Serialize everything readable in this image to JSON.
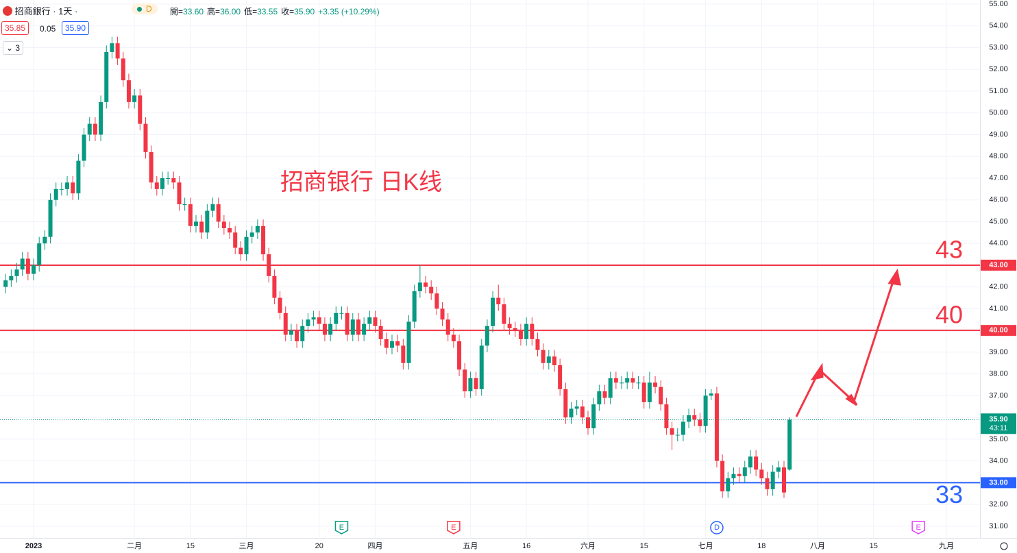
{
  "header": {
    "symbol": "招商銀行 · 1天 ·",
    "interval_badge": "D",
    "ohlc": [
      {
        "label": "開=",
        "value": "33.60"
      },
      {
        "label": "高=",
        "value": "36.00"
      },
      {
        "label": "低=",
        "value": "33.55"
      },
      {
        "label": "收=",
        "value": "35.90"
      }
    ],
    "change": "+3.35 (+10.29%)",
    "bid": "35.85",
    "spread": "0.05",
    "ask": "35.90",
    "indicators": "3"
  },
  "chart_data": {
    "type": "candlestick",
    "title": "招商银行 日K线",
    "up_color": "#089981",
    "down_color": "#f23645",
    "grid": true,
    "xlim": [
      -1,
      174
    ],
    "ylim": [
      30.46,
      55.19
    ],
    "xticks": [
      {
        "value": 5,
        "label": "2023"
      },
      {
        "value": 23,
        "label": "二月"
      },
      {
        "value": 33,
        "label": "15"
      },
      {
        "value": 43,
        "label": "三月"
      },
      {
        "value": 56,
        "label": "20"
      },
      {
        "value": 66,
        "label": "四月"
      },
      {
        "value": 83,
        "label": "五月"
      },
      {
        "value": 93,
        "label": "16"
      },
      {
        "value": 104,
        "label": "六月"
      },
      {
        "value": 114,
        "label": "15"
      },
      {
        "value": 125,
        "label": "七月"
      },
      {
        "value": 135,
        "label": "18"
      },
      {
        "value": 145,
        "label": "八月"
      },
      {
        "value": 155,
        "label": "15"
      },
      {
        "value": 168,
        "label": "九月"
      }
    ],
    "yticks": [
      {
        "value": 31,
        "label": "31.00"
      },
      {
        "value": 32,
        "label": "32.00"
      },
      {
        "value": 33,
        "label": "33.00"
      },
      {
        "value": 34,
        "label": "34.00"
      },
      {
        "value": 35,
        "label": "35.00"
      },
      {
        "value": 36,
        "label": "36.00"
      },
      {
        "value": 37,
        "label": "37.00"
      },
      {
        "value": 38,
        "label": "38.00"
      },
      {
        "value": 39,
        "label": "39.00"
      },
      {
        "value": 40,
        "label": "40.00"
      },
      {
        "value": 41,
        "label": "41.00"
      },
      {
        "value": 42,
        "label": "42.00"
      },
      {
        "value": 43,
        "label": "43.00"
      },
      {
        "value": 44,
        "label": "44.00"
      },
      {
        "value": 45,
        "label": "45.00"
      },
      {
        "value": 46,
        "label": "46.00"
      },
      {
        "value": 47,
        "label": "47.00"
      },
      {
        "value": 48,
        "label": "48.00"
      },
      {
        "value": 49,
        "label": "49.00"
      },
      {
        "value": 50,
        "label": "50.00"
      },
      {
        "value": 51,
        "label": "51.00"
      },
      {
        "value": 52,
        "label": "52.00"
      },
      {
        "value": 53,
        "label": "53.00"
      },
      {
        "value": 54,
        "label": "54.00"
      },
      {
        "value": 55,
        "label": "55.00"
      }
    ],
    "open": [
      42.0,
      42.3,
      42.5,
      42.8,
      43.3,
      42.6,
      43.0,
      44.0,
      44.3,
      46.0,
      46.5,
      46.5,
      46.8,
      46.3,
      47.8,
      49.0,
      49.5,
      49.0,
      50.5,
      52.8,
      53.2,
      52.5,
      51.5,
      50.5,
      50.8,
      49.5,
      48.2,
      46.8,
      46.5,
      47.0,
      47.0,
      46.8,
      45.8,
      45.8,
      44.8,
      45.0,
      44.5,
      45.5,
      45.8,
      45.0,
      44.7,
      44.5,
      43.8,
      43.5,
      44.3,
      44.5,
      44.8,
      43.5,
      42.5,
      41.5,
      40.8,
      39.8,
      40.0,
      39.5,
      40.2,
      40.5,
      40.6,
      40.3,
      39.8,
      40.3,
      40.8,
      40.8,
      39.8,
      40.5,
      39.8,
      40.3,
      40.6,
      40.2,
      39.6,
      39.2,
      39.5,
      39.3,
      38.5,
      40.4,
      41.8,
      42.2,
      42.0,
      41.7,
      41.0,
      40.5,
      39.8,
      39.5,
      38.2,
      37.2,
      37.8,
      37.3,
      39.3,
      40.2,
      41.5,
      41.2,
      40.3,
      40.1,
      40.0,
      39.6,
      40.3,
      39.6,
      39.1,
      38.5,
      38.8,
      38.4,
      37.3,
      36.0,
      36.4,
      36.5,
      36.0,
      35.5,
      36.6,
      37.2,
      36.9,
      37.8,
      37.6,
      37.6,
      37.8,
      37.6,
      37.6,
      36.7,
      37.6,
      37.4,
      36.6,
      35.5,
      35.2,
      35.2,
      35.8,
      36.1,
      35.9,
      35.6,
      37.0,
      37.1,
      34.0,
      32.6,
      33.2,
      33.4,
      33.3,
      33.7,
      34.2,
      33.6,
      33.2,
      32.7,
      33.5,
      33.7,
      33.6
    ],
    "high": [
      42.6,
      42.8,
      43.1,
      43.6,
      43.6,
      43.3,
      44.3,
      44.6,
      46.3,
      46.8,
      46.8,
      47.1,
      47.1,
      48.1,
      49.3,
      49.8,
      49.8,
      50.8,
      53.1,
      53.5,
      53.5,
      52.8,
      51.8,
      51.1,
      51.1,
      49.8,
      48.5,
      47.1,
      47.3,
      47.3,
      47.3,
      47.1,
      46.1,
      46.1,
      45.3,
      45.3,
      45.8,
      46.1,
      46.1,
      45.3,
      45.0,
      44.8,
      44.1,
      44.6,
      44.8,
      45.1,
      45.1,
      43.8,
      42.8,
      41.8,
      41.1,
      40.3,
      40.3,
      40.5,
      40.8,
      40.9,
      40.9,
      40.6,
      40.6,
      41.1,
      41.1,
      41.1,
      40.8,
      40.8,
      40.6,
      40.9,
      40.9,
      40.5,
      39.9,
      39.8,
      39.8,
      39.6,
      40.7,
      42.1,
      43.0,
      42.5,
      42.3,
      42.0,
      41.3,
      40.8,
      40.1,
      39.8,
      38.5,
      38.1,
      38.1,
      39.6,
      40.5,
      41.8,
      42.1,
      41.5,
      40.6,
      40.4,
      40.3,
      40.6,
      40.6,
      39.9,
      39.4,
      39.1,
      39.1,
      38.7,
      37.6,
      36.7,
      36.8,
      36.8,
      36.3,
      36.9,
      37.5,
      37.5,
      38.1,
      38.1,
      37.9,
      38.1,
      38.1,
      37.9,
      37.9,
      38.1,
      37.9,
      37.7,
      36.9,
      35.8,
      35.5,
      36.1,
      36.4,
      36.4,
      36.2,
      37.3,
      37.3,
      37.4,
      34.3,
      33.5,
      33.7,
      33.7,
      34.0,
      34.5,
      34.5,
      33.9,
      33.5,
      33.8,
      34.0,
      34.0,
      36.0
    ],
    "low": [
      41.7,
      42.0,
      42.2,
      42.5,
      42.3,
      42.3,
      42.7,
      43.7,
      44.0,
      45.7,
      46.2,
      46.2,
      46.0,
      46.0,
      47.5,
      48.7,
      48.7,
      48.7,
      50.2,
      52.5,
      52.2,
      51.2,
      50.2,
      50.2,
      49.2,
      47.9,
      46.5,
      46.2,
      46.2,
      46.7,
      46.5,
      45.5,
      45.5,
      44.5,
      44.5,
      44.2,
      44.2,
      45.2,
      44.7,
      44.4,
      44.2,
      43.5,
      43.2,
      43.2,
      44.0,
      44.2,
      43.2,
      42.2,
      41.2,
      40.5,
      39.5,
      39.5,
      39.2,
      39.2,
      39.9,
      40.2,
      40.0,
      39.5,
      39.5,
      40.0,
      40.5,
      39.5,
      39.5,
      39.5,
      39.5,
      40.0,
      39.9,
      39.3,
      38.9,
      38.9,
      39.0,
      38.2,
      38.2,
      40.1,
      41.5,
      41.7,
      41.4,
      40.7,
      40.2,
      39.5,
      39.2,
      37.9,
      36.9,
      36.9,
      37.0,
      37.0,
      39.0,
      39.9,
      40.9,
      40.0,
      39.8,
      39.7,
      39.3,
      39.3,
      39.3,
      38.8,
      38.2,
      38.2,
      38.1,
      37.0,
      35.7,
      35.7,
      36.1,
      35.7,
      35.2,
      35.2,
      36.3,
      36.6,
      36.6,
      37.3,
      37.3,
      37.3,
      37.3,
      37.3,
      36.4,
      36.4,
      37.1,
      36.3,
      35.2,
      34.5,
      34.9,
      34.9,
      35.5,
      35.6,
      35.3,
      35.3,
      36.8,
      33.7,
      32.3,
      32.3,
      32.9,
      33.0,
      33.0,
      33.4,
      33.3,
      32.9,
      32.4,
      32.4,
      33.2,
      32.3,
      33.55
    ],
    "close": [
      42.3,
      42.5,
      42.8,
      43.3,
      42.6,
      43.0,
      44.0,
      44.3,
      46.0,
      46.5,
      46.5,
      46.8,
      46.3,
      47.8,
      49.0,
      49.5,
      49.0,
      50.5,
      52.8,
      53.2,
      52.5,
      51.5,
      50.5,
      50.8,
      49.5,
      48.2,
      46.8,
      46.5,
      47.0,
      47.0,
      46.8,
      45.8,
      45.8,
      44.8,
      45.0,
      44.5,
      45.5,
      45.8,
      45.0,
      44.7,
      44.5,
      43.8,
      43.5,
      44.3,
      44.5,
      44.8,
      43.5,
      42.5,
      41.5,
      40.8,
      39.8,
      40.0,
      39.5,
      40.2,
      40.5,
      40.6,
      40.3,
      39.8,
      40.3,
      40.8,
      40.8,
      39.8,
      40.5,
      39.8,
      40.3,
      40.6,
      40.2,
      39.6,
      39.2,
      39.5,
      39.3,
      38.5,
      40.4,
      41.8,
      42.2,
      42.0,
      41.7,
      41.0,
      40.5,
      39.8,
      39.5,
      38.2,
      37.2,
      37.8,
      37.3,
      39.3,
      40.2,
      41.5,
      41.2,
      40.3,
      40.1,
      40.0,
      39.6,
      40.3,
      39.6,
      39.1,
      38.5,
      38.8,
      38.4,
      37.3,
      36.0,
      36.4,
      36.5,
      36.0,
      35.5,
      36.6,
      37.2,
      36.9,
      37.8,
      37.6,
      37.6,
      37.8,
      37.6,
      37.6,
      36.7,
      37.6,
      37.4,
      36.6,
      35.5,
      35.2,
      35.2,
      35.8,
      36.1,
      35.9,
      35.6,
      37.0,
      37.1,
      34.0,
      32.6,
      33.2,
      33.4,
      33.3,
      33.7,
      34.2,
      33.6,
      33.2,
      32.7,
      33.5,
      33.7,
      32.55,
      35.9
    ],
    "last_price": {
      "value": 35.9,
      "label": "35.90",
      "countdown": "43:11",
      "color": "#089981"
    },
    "hlines": [
      {
        "value": 43,
        "label": "43.00",
        "note": "43",
        "color": "#f23645"
      },
      {
        "value": 40,
        "label": "40.00",
        "note": "40",
        "color": "#f23645"
      },
      {
        "value": 33,
        "label": "33.00",
        "note": "33",
        "color": "#2962ff"
      }
    ],
    "events": [
      {
        "x": 60,
        "label": "E",
        "color": "#089981"
      },
      {
        "x": 80,
        "label": "E",
        "color": "#f23645"
      },
      {
        "x": 127,
        "label": "D",
        "color": "#2962ff"
      },
      {
        "x": 163,
        "label": "E",
        "color": "#e040fb"
      }
    ]
  }
}
